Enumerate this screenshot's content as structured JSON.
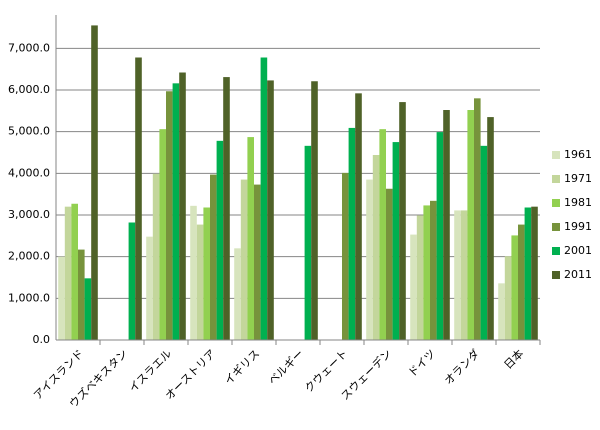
{
  "chart_data": {
    "type": "bar",
    "categories": [
      "アイスランド",
      "ウズベキスタン",
      "イスラエル",
      "オーストリア",
      "イギリス",
      "ベルギー",
      "クウェート",
      "スウェーデン",
      "ドイツ",
      "オランダ",
      "日本"
    ],
    "series": [
      {
        "name": "1961",
        "color": "#d7e4bd",
        "values": [
          2000,
          null,
          2480,
          3220,
          2200,
          null,
          null,
          3850,
          2530,
          3110,
          1360
        ]
      },
      {
        "name": "1971",
        "color": "#c3d69b",
        "values": [
          3200,
          null,
          3990,
          2770,
          3850,
          null,
          null,
          4440,
          2990,
          3110,
          2010
        ]
      },
      {
        "name": "1981",
        "color": "#92d050",
        "values": [
          3270,
          null,
          5060,
          3180,
          4870,
          null,
          null,
          5060,
          3230,
          5520,
          2510
        ]
      },
      {
        "name": "1991",
        "color": "#77933c",
        "values": [
          2170,
          null,
          5970,
          3970,
          3730,
          null,
          4010,
          3630,
          3340,
          5800,
          2770
        ]
      },
      {
        "name": "2001",
        "color": "#00b050",
        "values": [
          1480,
          2820,
          6160,
          4780,
          6780,
          4660,
          5090,
          4750,
          4990,
          4660,
          3180
        ]
      },
      {
        "name": "2011",
        "color": "#4f6228",
        "values": [
          7550,
          6780,
          6420,
          6310,
          6230,
          6210,
          5920,
          5710,
          5520,
          5350,
          3200
        ]
      }
    ],
    "ylim": [
      0,
      7800
    ],
    "yticks": [
      {
        "value": 0,
        "label": "0.0"
      },
      {
        "value": 1000,
        "label": "1,000.0"
      },
      {
        "value": 2000,
        "label": "2,000.0"
      },
      {
        "value": 3000,
        "label": "3,000.0"
      },
      {
        "value": 4000,
        "label": "4,000.0"
      },
      {
        "value": 5000,
        "label": "5,000.0"
      },
      {
        "value": 6000,
        "label": "6,000.0"
      },
      {
        "value": 7000,
        "label": "7,000.0"
      }
    ],
    "grid": true,
    "legend": "right"
  }
}
